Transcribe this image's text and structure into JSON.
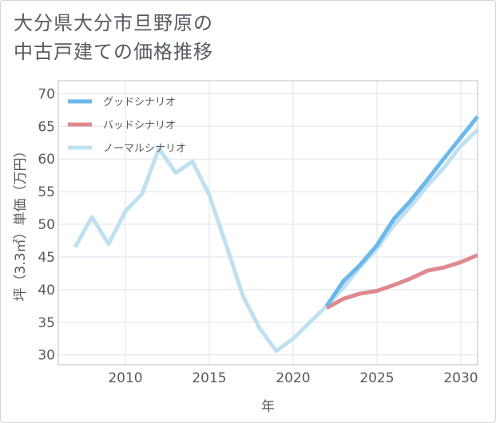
{
  "title": {
    "line1": "大分県大分市旦野原の",
    "line2": "中古戸建ての価格推移"
  },
  "chart_data": {
    "type": "line",
    "xlabel": "年",
    "ylabel": "坪（3.3㎡）単価（万円）",
    "xlim": [
      2006,
      2031
    ],
    "ylim": [
      28.5,
      72
    ],
    "x_ticks": [
      2010,
      2015,
      2020,
      2025,
      2030
    ],
    "y_ticks": [
      30,
      35,
      40,
      45,
      50,
      55,
      60,
      65,
      70
    ],
    "grid": true,
    "legend_position": "top-left",
    "series": [
      {
        "name": "グッドシナリオ",
        "color": "#6bb8ea",
        "x": [
          2022,
          2023,
          2024,
          2025,
          2026,
          2027,
          2028,
          2029,
          2030,
          2031
        ],
        "y": [
          37.5,
          41.3,
          43.8,
          46.8,
          50.8,
          53.6,
          56.8,
          60.1,
          63.3,
          66.5
        ]
      },
      {
        "name": "バッドシナリオ",
        "color": "#e0888f",
        "x": [
          2022,
          2023,
          2024,
          2025,
          2026,
          2027,
          2028,
          2029,
          2030,
          2031
        ],
        "y": [
          37.2,
          38.6,
          39.4,
          39.8,
          40.7,
          41.7,
          42.9,
          43.4,
          44.2,
          45.3
        ]
      },
      {
        "name": "ノーマルシナリオ",
        "color": "#bfe0f0",
        "x": [
          2007,
          2008,
          2009,
          2010,
          2011,
          2012,
          2013,
          2014,
          2015,
          2016,
          2017,
          2018,
          2019,
          2020,
          2021,
          2022,
          2023,
          2024,
          2025,
          2026,
          2027,
          2028,
          2029,
          2030,
          2031
        ],
        "y": [
          46.5,
          51.1,
          47.0,
          52.0,
          54.7,
          61.6,
          57.9,
          59.6,
          54.5,
          46.9,
          39.1,
          34.1,
          30.6,
          32.5,
          35.0,
          37.5,
          40.3,
          43.5,
          46.3,
          49.8,
          52.7,
          55.9,
          58.7,
          62.0,
          64.5
        ]
      }
    ]
  }
}
